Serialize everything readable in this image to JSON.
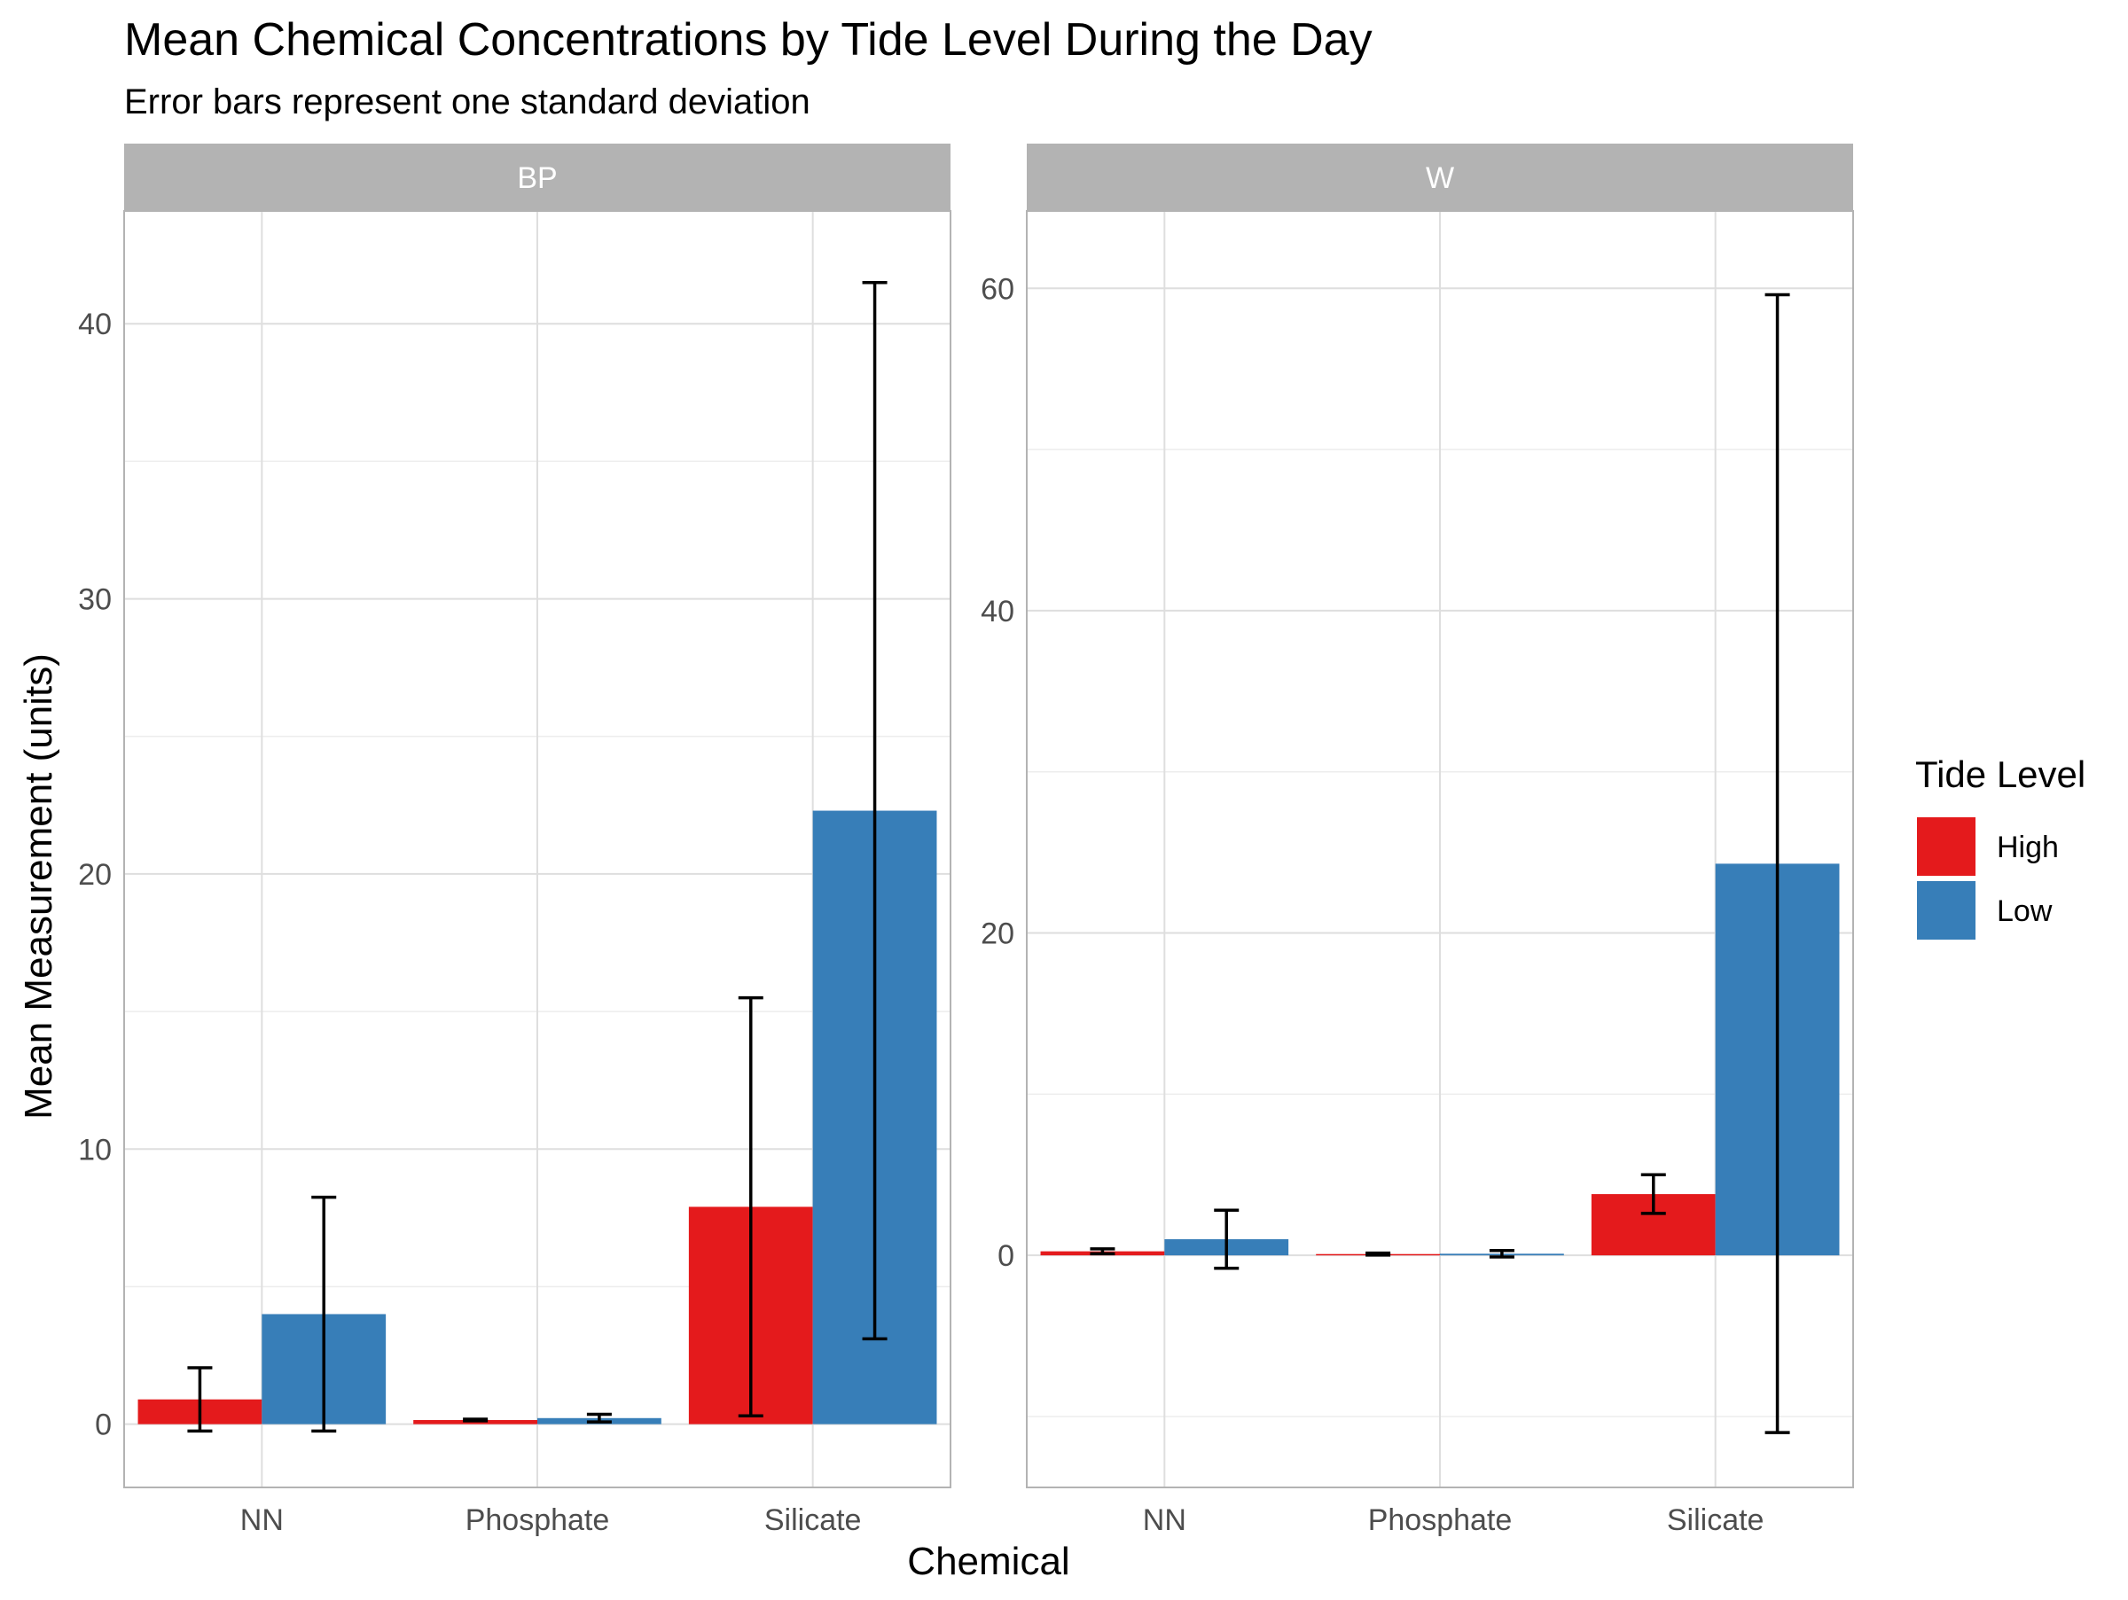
{
  "title": "Mean Chemical Concentrations by Tide Level During the Day",
  "subtitle": "Error bars represent one standard deviation",
  "xlabel": "Chemical",
  "ylabel": "Mean Measurement (units)",
  "legend": {
    "title": "Tide Level",
    "entries": [
      {
        "name": "High",
        "color": "#E41A1C"
      },
      {
        "name": "Low",
        "color": "#377EB8"
      }
    ]
  },
  "chart_data": [
    {
      "type": "bar",
      "facet": "BP",
      "categories": [
        "NN",
        "Phosphate",
        "Silicate"
      ],
      "ylim": [
        -2.3,
        44.1
      ],
      "yticks": [
        0,
        10,
        20,
        30,
        40
      ],
      "grid": true,
      "series": [
        {
          "name": "High",
          "color": "#E41A1C",
          "values": [
            0.9,
            0.15,
            7.9
          ],
          "error_low": [
            -0.25,
            0.12,
            0.3
          ],
          "error_high": [
            2.05,
            0.18,
            15.5
          ]
        },
        {
          "name": "Low",
          "color": "#377EB8",
          "values": [
            4.0,
            0.22,
            22.3
          ],
          "error_low": [
            -0.25,
            0.08,
            3.1
          ],
          "error_high": [
            8.25,
            0.36,
            41.5
          ]
        }
      ]
    },
    {
      "type": "bar",
      "facet": "W",
      "categories": [
        "NN",
        "Phosphate",
        "Silicate"
      ],
      "ylim": [
        -14.4,
        64.8
      ],
      "yticks": [
        0,
        20,
        40,
        60
      ],
      "grid": true,
      "series": [
        {
          "name": "High",
          "color": "#E41A1C",
          "values": [
            0.25,
            0.08,
            3.8
          ],
          "error_low": [
            0.1,
            0.02,
            2.6
          ],
          "error_high": [
            0.4,
            0.14,
            5.0
          ]
        },
        {
          "name": "Low",
          "color": "#377EB8",
          "values": [
            1.0,
            0.1,
            24.3
          ],
          "error_low": [
            -0.8,
            -0.1,
            -11.0
          ],
          "error_high": [
            2.8,
            0.3,
            59.6
          ]
        }
      ]
    }
  ]
}
